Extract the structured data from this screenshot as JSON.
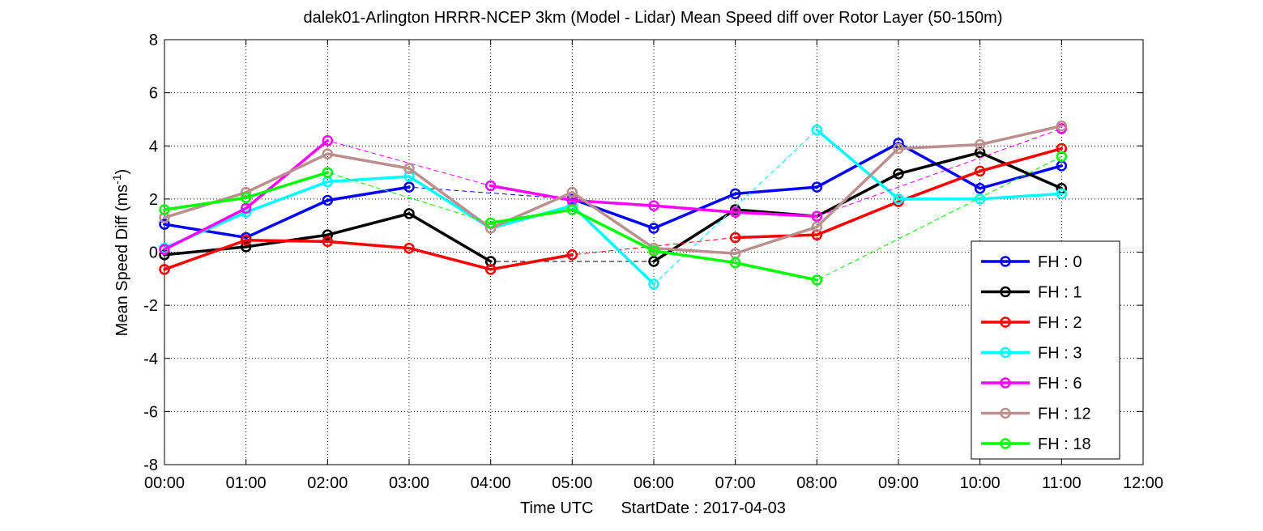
{
  "chart_data": {
    "type": "line",
    "title": "dalek01-Arlington HRRR-NCEP 3km (Model - Lidar) Mean Speed diff over Rotor Layer (50-150m)",
    "xlabel": "Time UTC",
    "xlabel_suffix": "StartDate : 2017-04-03",
    "ylabel": "Mean Speed Diff (ms",
    "ylabel_sup": "-1",
    "ylabel_close": ")",
    "xlim": [
      0,
      12
    ],
    "ylim": [
      -8,
      8
    ],
    "x_ticks": [
      "00:00",
      "01:00",
      "02:00",
      "03:00",
      "04:00",
      "05:00",
      "06:00",
      "07:00",
      "08:00",
      "09:00",
      "10:00",
      "11:00",
      "12:00"
    ],
    "y_ticks": [
      "-8",
      "-6",
      "-4",
      "-2",
      "0",
      "2",
      "4",
      "6",
      "8"
    ],
    "grid": true,
    "grid_style": "dotted",
    "legend_position": "bottom-right",
    "x": [
      0,
      1,
      2,
      3,
      4,
      5,
      6,
      7,
      8,
      9,
      10,
      11
    ],
    "series": [
      {
        "name": "FH : 0",
        "color": "#0000ff",
        "values": [
          1.05,
          0.55,
          1.95,
          2.45,
          null,
          2.0,
          0.9,
          2.2,
          2.45,
          4.1,
          2.4,
          3.25
        ]
      },
      {
        "name": "FH : 1",
        "color": "#000000",
        "values": [
          -0.1,
          0.2,
          0.65,
          1.45,
          -0.35,
          null,
          -0.35,
          1.6,
          1.35,
          2.95,
          3.75,
          2.4
        ]
      },
      {
        "name": "FH : 2",
        "color": "#ff0000",
        "values": [
          -0.65,
          0.45,
          0.4,
          0.15,
          -0.65,
          -0.1,
          null,
          0.55,
          0.65,
          1.9,
          3.05,
          3.9
        ]
      },
      {
        "name": "FH : 3",
        "color": "#00ffff",
        "values": [
          0.15,
          1.5,
          2.65,
          2.85,
          0.9,
          1.75,
          -1.2,
          null,
          4.6,
          2.0,
          2.0,
          2.2
        ]
      },
      {
        "name": "FH : 6",
        "color": "#ff00ff",
        "values": [
          0.1,
          1.65,
          4.2,
          null,
          2.5,
          1.95,
          1.75,
          1.5,
          1.35,
          null,
          null,
          4.65
        ]
      },
      {
        "name": "FH : 12",
        "color": "#bc8f8f",
        "values": [
          1.3,
          2.25,
          3.7,
          3.15,
          0.9,
          2.25,
          0.15,
          -0.05,
          0.95,
          3.9,
          4.05,
          4.75
        ]
      },
      {
        "name": "FH : 18",
        "color": "#00ff00",
        "values": [
          1.6,
          2.05,
          3.0,
          null,
          1.1,
          1.6,
          0.05,
          -0.4,
          -1.05,
          null,
          null,
          3.6
        ]
      }
    ]
  }
}
